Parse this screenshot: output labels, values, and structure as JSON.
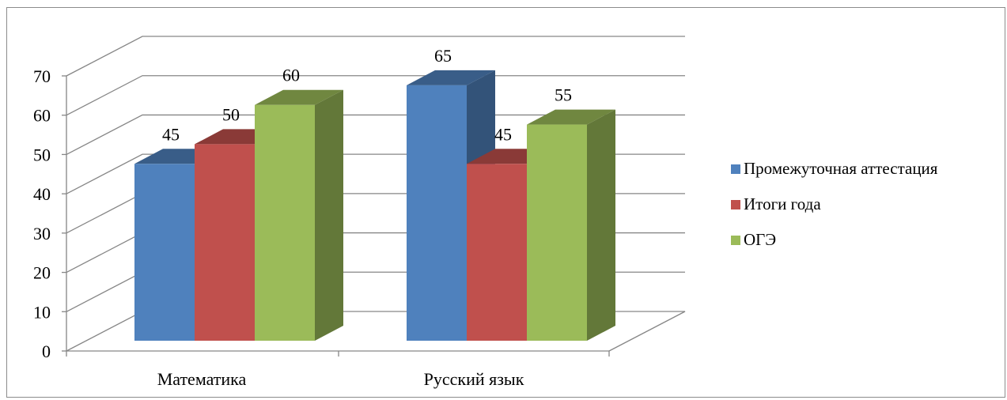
{
  "chart_data": {
    "type": "bar",
    "categories": [
      "Математика",
      "Русский язык"
    ],
    "series": [
      {
        "name": "Промежуточная аттестация",
        "values": [
          45,
          65
        ],
        "color": "#4f81bd"
      },
      {
        "name": "Итоги года",
        "values": [
          50,
          45
        ],
        "color": "#c0504d"
      },
      {
        "name": "ОГЭ",
        "values": [
          60,
          55
        ],
        "color": "#9bbb59"
      }
    ],
    "yticks": [
      "0",
      "10",
      "20",
      "30",
      "40",
      "50",
      "60",
      "70"
    ],
    "ylim": [
      0,
      70
    ],
    "grid": true,
    "legend_position": "right",
    "three_d": true
  }
}
